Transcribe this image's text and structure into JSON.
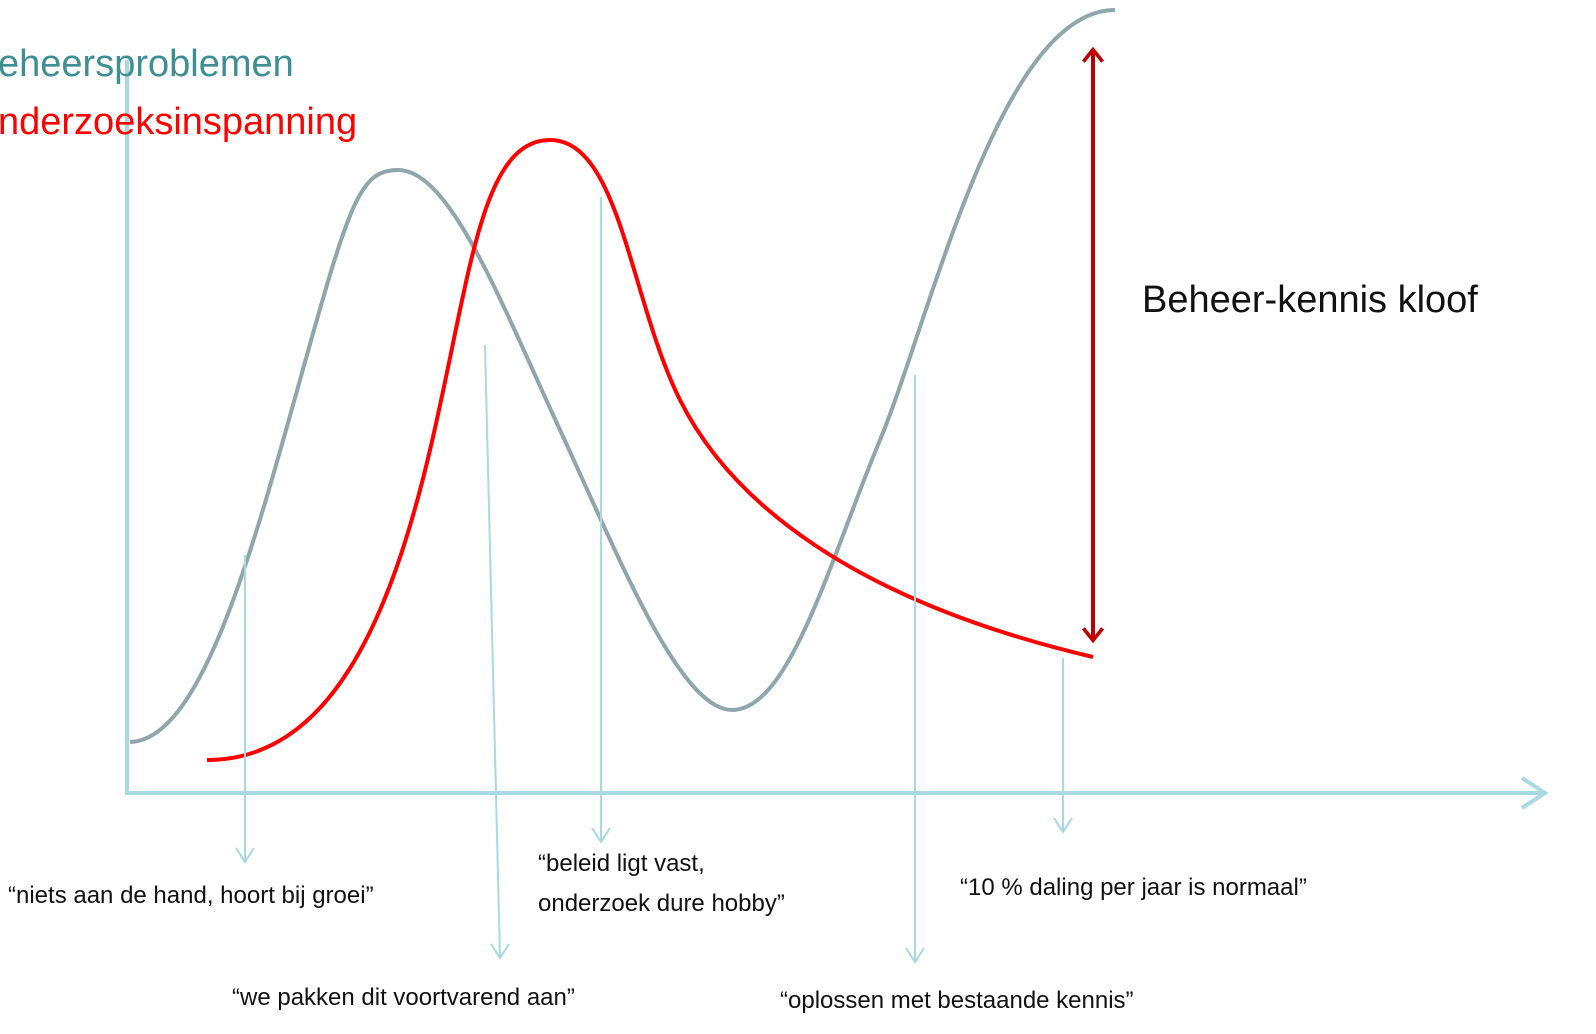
{
  "legend": {
    "items": [
      "eheersproblemen",
      "nderzoeksinspanning"
    ]
  },
  "gap_label": "Beheer-kennis kloof",
  "quotes": {
    "q1": "“niets aan de hand, hoort bij groei”",
    "q2": "“we pakken dit voortvarend aan”",
    "q3": [
      "“beleid ligt vast,",
      "onderzoek dure hobby”"
    ],
    "q4": "“oplossen met bestaande kennis”",
    "q5": "“10 % daling per jaar is normaal”"
  }
}
